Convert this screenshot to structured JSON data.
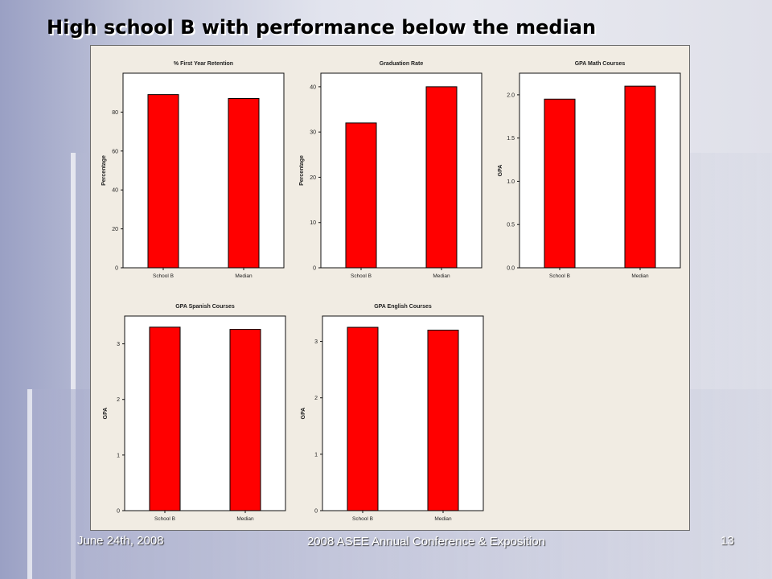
{
  "slide": {
    "title": "High school B with performance below the median",
    "footer_date": "June 24th, 2008",
    "footer_conference": "2008 ASEE Annual Conference & Exposition",
    "page_number": "13"
  },
  "colors": {
    "bar": "#ff0000",
    "plot_bg": "#ffffff",
    "figure_bg": "#f1ece3"
  },
  "chart_data": [
    {
      "type": "bar",
      "title": "% First Year Retention",
      "xlabel": "",
      "ylabel": "Percentage",
      "categories": [
        "School B",
        "Median"
      ],
      "values": [
        89,
        87
      ],
      "ylim": [
        0,
        100
      ],
      "yticks": [
        "0",
        "20",
        "40",
        "60",
        "80"
      ],
      "ytick_values": [
        0,
        20,
        40,
        60,
        80
      ],
      "grid": false
    },
    {
      "type": "bar",
      "title": "Graduation Rate",
      "xlabel": "",
      "ylabel": "Percentage",
      "categories": [
        "School B",
        "Median"
      ],
      "values": [
        32,
        40
      ],
      "ylim": [
        0,
        43
      ],
      "yticks": [
        "0",
        "10",
        "20",
        "30",
        "40"
      ],
      "ytick_values": [
        0,
        10,
        20,
        30,
        40
      ],
      "grid": false
    },
    {
      "type": "bar",
      "title": "GPA Math Courses",
      "xlabel": "",
      "ylabel": "GPA",
      "categories": [
        "School B",
        "Median"
      ],
      "values": [
        1.95,
        2.1
      ],
      "ylim": [
        0,
        2.25
      ],
      "yticks": [
        "0.0",
        "0.5",
        "1.0",
        "1.5",
        "2.0"
      ],
      "ytick_values": [
        0,
        0.5,
        1,
        1.5,
        2
      ],
      "grid": false
    },
    {
      "type": "bar",
      "title": "GPA Spanish Courses",
      "xlabel": "",
      "ylabel": "GPA",
      "categories": [
        "School B",
        "Median"
      ],
      "values": [
        3.3,
        3.26
      ],
      "ylim": [
        0,
        3.5
      ],
      "yticks": [
        "0",
        "1",
        "2",
        "3"
      ],
      "ytick_values": [
        0,
        1,
        2,
        3
      ],
      "grid": false
    },
    {
      "type": "bar",
      "title": "GPA English Courses",
      "xlabel": "",
      "ylabel": "GPA",
      "categories": [
        "School B",
        "Median"
      ],
      "values": [
        3.25,
        3.2
      ],
      "ylim": [
        0,
        3.45
      ],
      "yticks": [
        "0",
        "1",
        "2",
        "3"
      ],
      "ytick_values": [
        0,
        1,
        2,
        3
      ],
      "grid": false
    }
  ]
}
